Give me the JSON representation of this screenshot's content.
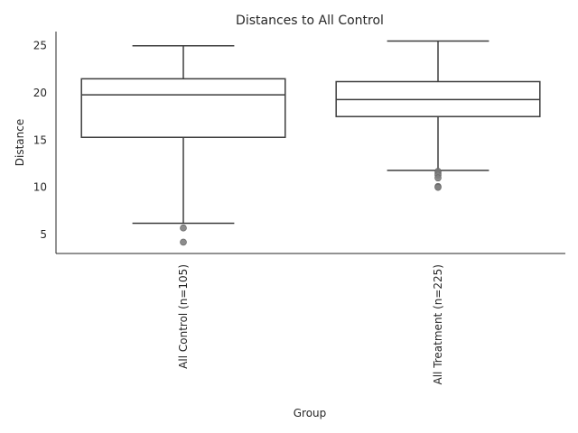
{
  "chart_data": {
    "type": "box",
    "title": "Distances to All Control",
    "xlabel": "Group",
    "ylabel": "Distance",
    "categories": [
      "All Control (n=105)",
      "All Treatment (n=225)"
    ],
    "ylim": [
      3.0,
      26.5
    ],
    "yticks": [
      5,
      10,
      15,
      20,
      25
    ],
    "grid": false,
    "boxes": [
      {
        "label": "All Control (n=105)",
        "whisker_low": 6.2,
        "q1": 15.3,
        "median": 19.8,
        "q3": 21.5,
        "whisker_high": 25.0,
        "outliers": [
          5.7,
          4.2
        ]
      },
      {
        "label": "All Treatment (n=225)",
        "whisker_low": 11.8,
        "q1": 17.5,
        "median": 19.3,
        "q3": 21.2,
        "whisker_high": 25.5,
        "outliers": [
          11.7,
          11.5,
          11.3,
          11.0,
          10.1,
          10.0
        ]
      }
    ],
    "colors": {
      "line": "#3d3d3d",
      "outlier": "#7f7f7f",
      "text": "#262626",
      "axis": "#262626"
    }
  }
}
